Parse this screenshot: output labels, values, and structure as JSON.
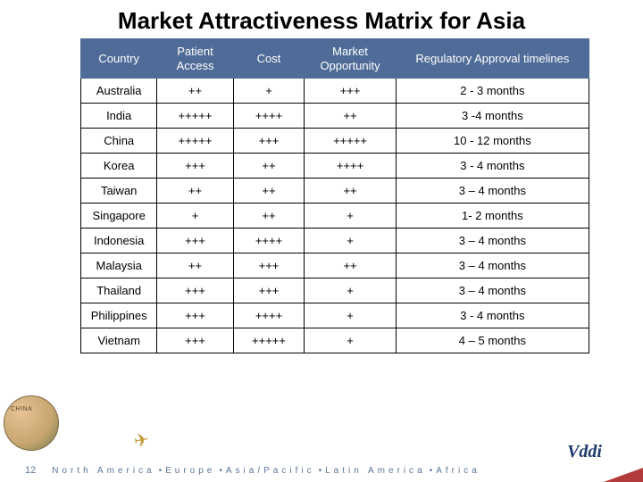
{
  "title": "Market Attractiveness Matrix for Asia",
  "table": {
    "headers": {
      "country": "Country",
      "access": "Patient Access",
      "cost": "Cost",
      "market": "Market Opportunity",
      "reg": "Regulatory Approval timelines"
    },
    "rows": [
      {
        "country": "Australia",
        "access": "++",
        "cost": "+",
        "market": "+++",
        "reg": "2 - 3 months"
      },
      {
        "country": "India",
        "access": "+++++",
        "cost": "++++",
        "market": "++",
        "reg": "3 -4 months"
      },
      {
        "country": "China",
        "access": "+++++",
        "cost": "+++",
        "market": "+++++",
        "reg": "10 - 12 months"
      },
      {
        "country": "Korea",
        "access": "+++",
        "cost": "++",
        "market": "++++",
        "reg": "3 - 4 months"
      },
      {
        "country": "Taiwan",
        "access": "++",
        "cost": "++",
        "market": "++",
        "reg": "3 – 4 months"
      },
      {
        "country": "Singapore",
        "access": "+",
        "cost": "++",
        "market": "+",
        "reg": "1- 2 months"
      },
      {
        "country": "Indonesia",
        "access": "+++",
        "cost": "++++",
        "market": "+",
        "reg": "3 – 4 months"
      },
      {
        "country": "Malaysia",
        "access": "++",
        "cost": "+++",
        "market": "++",
        "reg": "3 – 4 months"
      },
      {
        "country": "Thailand",
        "access": "+++",
        "cost": "+++",
        "market": "+",
        "reg": "3 – 4 months"
      },
      {
        "country": "Philippines",
        "access": "+++",
        "cost": "++++",
        "market": "+",
        "reg": "3 -  4 months"
      },
      {
        "country": "Vietnam",
        "access": "+++",
        "cost": "+++++",
        "market": "+",
        "reg": "4 – 5 months"
      }
    ]
  },
  "footer": {
    "page": "12",
    "regions": [
      "North America",
      "Europe",
      "Asia/Pacific",
      "Latin America",
      "Africa"
    ],
    "logo_text": "Vddi",
    "globe_label": "CHINA"
  },
  "colors": {
    "header_bg": "#4f6b97",
    "header_text": "#ffffff",
    "border": "#000000",
    "footer_text": "#5b7496",
    "logo": "#1e3a6d",
    "corner": "#b23a3a"
  }
}
